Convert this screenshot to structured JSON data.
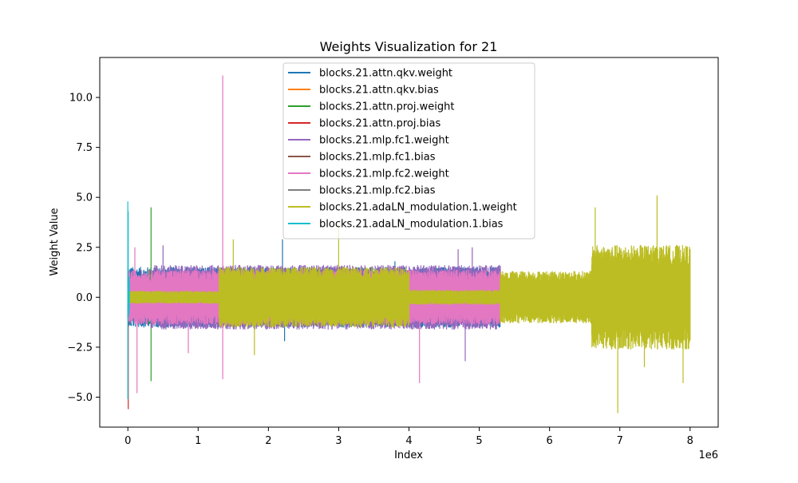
{
  "chart_data": {
    "type": "line",
    "title": "Weights Visualization for 21",
    "xlabel": "Index",
    "ylabel": "Weight Value",
    "x_offset_label": "1e6",
    "xlim": [
      -0.4,
      8.4
    ],
    "ylim": [
      -6.5,
      12.0
    ],
    "x_ticks": [
      0,
      1,
      2,
      3,
      4,
      5,
      6,
      7,
      8
    ],
    "x_tick_labels": [
      "0",
      "1",
      "2",
      "3",
      "4",
      "5",
      "6",
      "7",
      "8"
    ],
    "y_ticks": [
      -5.0,
      -2.5,
      0.0,
      2.5,
      5.0,
      7.5,
      10.0
    ],
    "y_tick_labels": [
      "−5.0",
      "−2.5",
      "0.0",
      "2.5",
      "5.0",
      "7.5",
      "10.0"
    ],
    "legend_position": "top-center",
    "series": [
      {
        "name": "blocks.21.attn.qkv.weight",
        "color": "#1f77b4",
        "segments": [
          [
            0.0,
            4.0,
            1.5
          ],
          [
            4.0,
            5.3,
            1.5
          ]
        ],
        "spikes": [
          [
            2.2,
            2.9
          ],
          [
            2.23,
            -2.2
          ],
          [
            3.8,
            1.8
          ]
        ]
      },
      {
        "name": "blocks.21.attn.qkv.bias",
        "color": "#ff7f0e",
        "segments": [
          [
            0.0,
            0.01,
            1.0
          ]
        ],
        "spikes": [
          [
            0.0,
            1.5
          ]
        ]
      },
      {
        "name": "blocks.21.attn.proj.weight",
        "color": "#2ca02c",
        "segments": [
          [
            0.3,
            0.33,
            1.4
          ]
        ],
        "spikes": [
          [
            0.33,
            4.5
          ],
          [
            0.33,
            -4.2
          ]
        ]
      },
      {
        "name": "blocks.21.attn.proj.bias",
        "color": "#d62728",
        "segments": [
          [
            0.0,
            0.01,
            1.0
          ]
        ],
        "spikes": [
          [
            0.005,
            -5.6
          ]
        ]
      },
      {
        "name": "blocks.21.mlp.fc1.weight",
        "color": "#9467bd",
        "segments": [
          [
            0.33,
            5.3,
            1.6
          ]
        ],
        "spikes": [
          [
            0.5,
            2.6
          ],
          [
            4.8,
            -3.2
          ],
          [
            4.9,
            2.5
          ],
          [
            4.7,
            2.4
          ]
        ]
      },
      {
        "name": "blocks.21.mlp.fc1.bias",
        "color": "#8c564b",
        "segments": [
          [
            0.0,
            0.01,
            1.0
          ]
        ],
        "spikes": []
      },
      {
        "name": "blocks.21.mlp.fc2.weight",
        "color": "#e377c2",
        "segments": [
          [
            0.0,
            5.3,
            1.35
          ]
        ],
        "spikes": [
          [
            1.35,
            11.1
          ],
          [
            1.35,
            -4.1
          ],
          [
            0.13,
            -4.8
          ],
          [
            4.15,
            -4.3
          ],
          [
            0.86,
            -2.8
          ],
          [
            0.1,
            2.5
          ]
        ]
      },
      {
        "name": "blocks.21.mlp.fc2.bias",
        "color": "#7f7f7f",
        "segments": [
          [
            0.0,
            0.01,
            1.0
          ]
        ],
        "spikes": []
      },
      {
        "name": "blocks.21.adaLN_modulation.1.weight",
        "color": "#bcbd22",
        "segments": [
          [
            0.0,
            1.3,
            0.3
          ],
          [
            1.3,
            4.0,
            1.5
          ],
          [
            4.0,
            5.3,
            0.35
          ],
          [
            5.3,
            6.6,
            1.3
          ],
          [
            6.6,
            8.0,
            2.6
          ]
        ],
        "spikes": [
          [
            6.97,
            -5.8
          ],
          [
            7.53,
            5.1
          ],
          [
            6.65,
            4.5
          ],
          [
            7.35,
            -3.5
          ],
          [
            3.0,
            3.6
          ],
          [
            1.8,
            -2.9
          ],
          [
            7.9,
            -4.3
          ],
          [
            1.5,
            2.9
          ]
        ]
      },
      {
        "name": "blocks.21.adaLN_modulation.1.bias",
        "color": "#17becf",
        "segments": [
          [
            0.0,
            0.02,
            1.0
          ]
        ],
        "spikes": [
          [
            0.0,
            4.8
          ],
          [
            0.0,
            -5.1
          ],
          [
            0.005,
            4.3
          ]
        ]
      }
    ]
  }
}
